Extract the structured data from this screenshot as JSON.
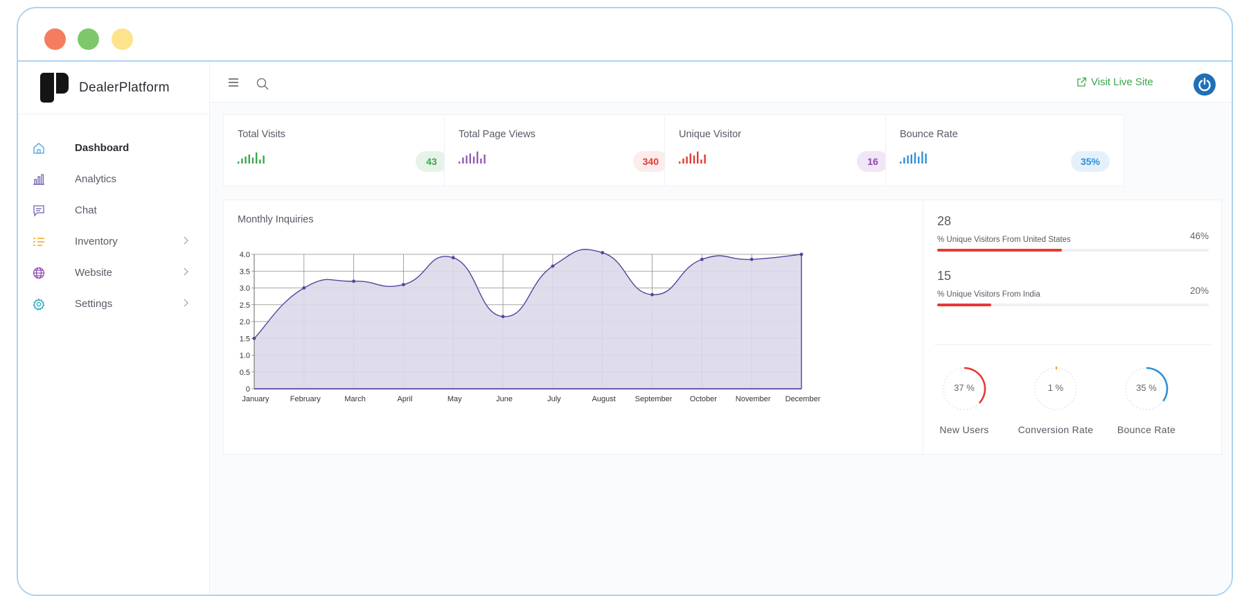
{
  "brand": {
    "name": "DealerPlatform"
  },
  "sidebar": {
    "items": [
      {
        "label": "Dashboard",
        "icon": "home-icon",
        "color": "#3fa3dc",
        "active": true
      },
      {
        "label": "Analytics",
        "icon": "bar-chart-icon",
        "color": "#6c63b5"
      },
      {
        "label": "Chat",
        "icon": "chat-icon",
        "color": "#6c63b5"
      },
      {
        "label": "Inventory",
        "icon": "list-icon",
        "color": "#f2a51a",
        "submenu": true
      },
      {
        "label": "Website",
        "icon": "globe-icon",
        "color": "#8e44ad",
        "submenu": true
      },
      {
        "label": "Settings",
        "icon": "gear-icon",
        "color": "#17a2b8",
        "submenu": true
      }
    ]
  },
  "topbar": {
    "visit_label": "Visit Live Site",
    "visit_color": "#3aa64a"
  },
  "stats": [
    {
      "title": "Total Visits",
      "value": "43",
      "color": "#3aa64a",
      "badge_bg": "#e6f4e8",
      "bars": [
        2,
        5,
        7,
        9,
        6,
        11,
        4,
        8
      ]
    },
    {
      "title": "Total Page Views",
      "value": "340",
      "color": "#e53935",
      "spark_color": "#8e5cb5",
      "badge_bg": "#fdecec",
      "bars": [
        2,
        6,
        8,
        10,
        7,
        12,
        5,
        9
      ]
    },
    {
      "title": "Unique Visitor",
      "value": "16",
      "color": "#8e44ad",
      "spark_color": "#e53935",
      "badge_bg": "#f1e6f6",
      "bars": [
        2,
        5,
        7,
        10,
        8,
        12,
        4,
        9
      ]
    },
    {
      "title": "Bounce Rate",
      "value": "35%",
      "color": "#2e8fd6",
      "badge_bg": "#e4f1fb",
      "bars": [
        2,
        6,
        8,
        9,
        11,
        7,
        12,
        10
      ]
    }
  ],
  "monthly": {
    "title": "Monthly Inquiries"
  },
  "chart_data": {
    "type": "area",
    "title": "Monthly Inquiries",
    "categories": [
      "January",
      "February",
      "March",
      "April",
      "May",
      "June",
      "July",
      "August",
      "September",
      "October",
      "November",
      "December"
    ],
    "values": [
      1.5,
      3.0,
      3.2,
      3.1,
      3.9,
      2.15,
      3.65,
      4.05,
      2.8,
      3.85,
      3.85,
      4.0
    ],
    "ylim": [
      0,
      4.0
    ],
    "yticks": [
      "4.0",
      "3.5",
      "3.0",
      "2.5",
      "2.0",
      "1.5",
      "1.0",
      "0.5",
      "0"
    ],
    "grid": true,
    "line_color": "#5b3f9e",
    "fill_color": "#dcd8ea"
  },
  "geo": [
    {
      "count": "28",
      "label": "% Unique Visitors From United States",
      "pct": "46%",
      "value": 0.46
    },
    {
      "count": "15",
      "label": "% Unique Visitors From India",
      "pct": "20%",
      "value": 0.2
    }
  ],
  "gauges": [
    {
      "label": "New Users",
      "text": "37 %",
      "value": 0.37,
      "color": "#e53935"
    },
    {
      "label": "Conversion Rate",
      "text": "1 %",
      "value": 0.01,
      "color": "#f2a51a"
    },
    {
      "label": "Bounce Rate",
      "text": "35 %",
      "value": 0.35,
      "color": "#2e8fd6"
    }
  ]
}
